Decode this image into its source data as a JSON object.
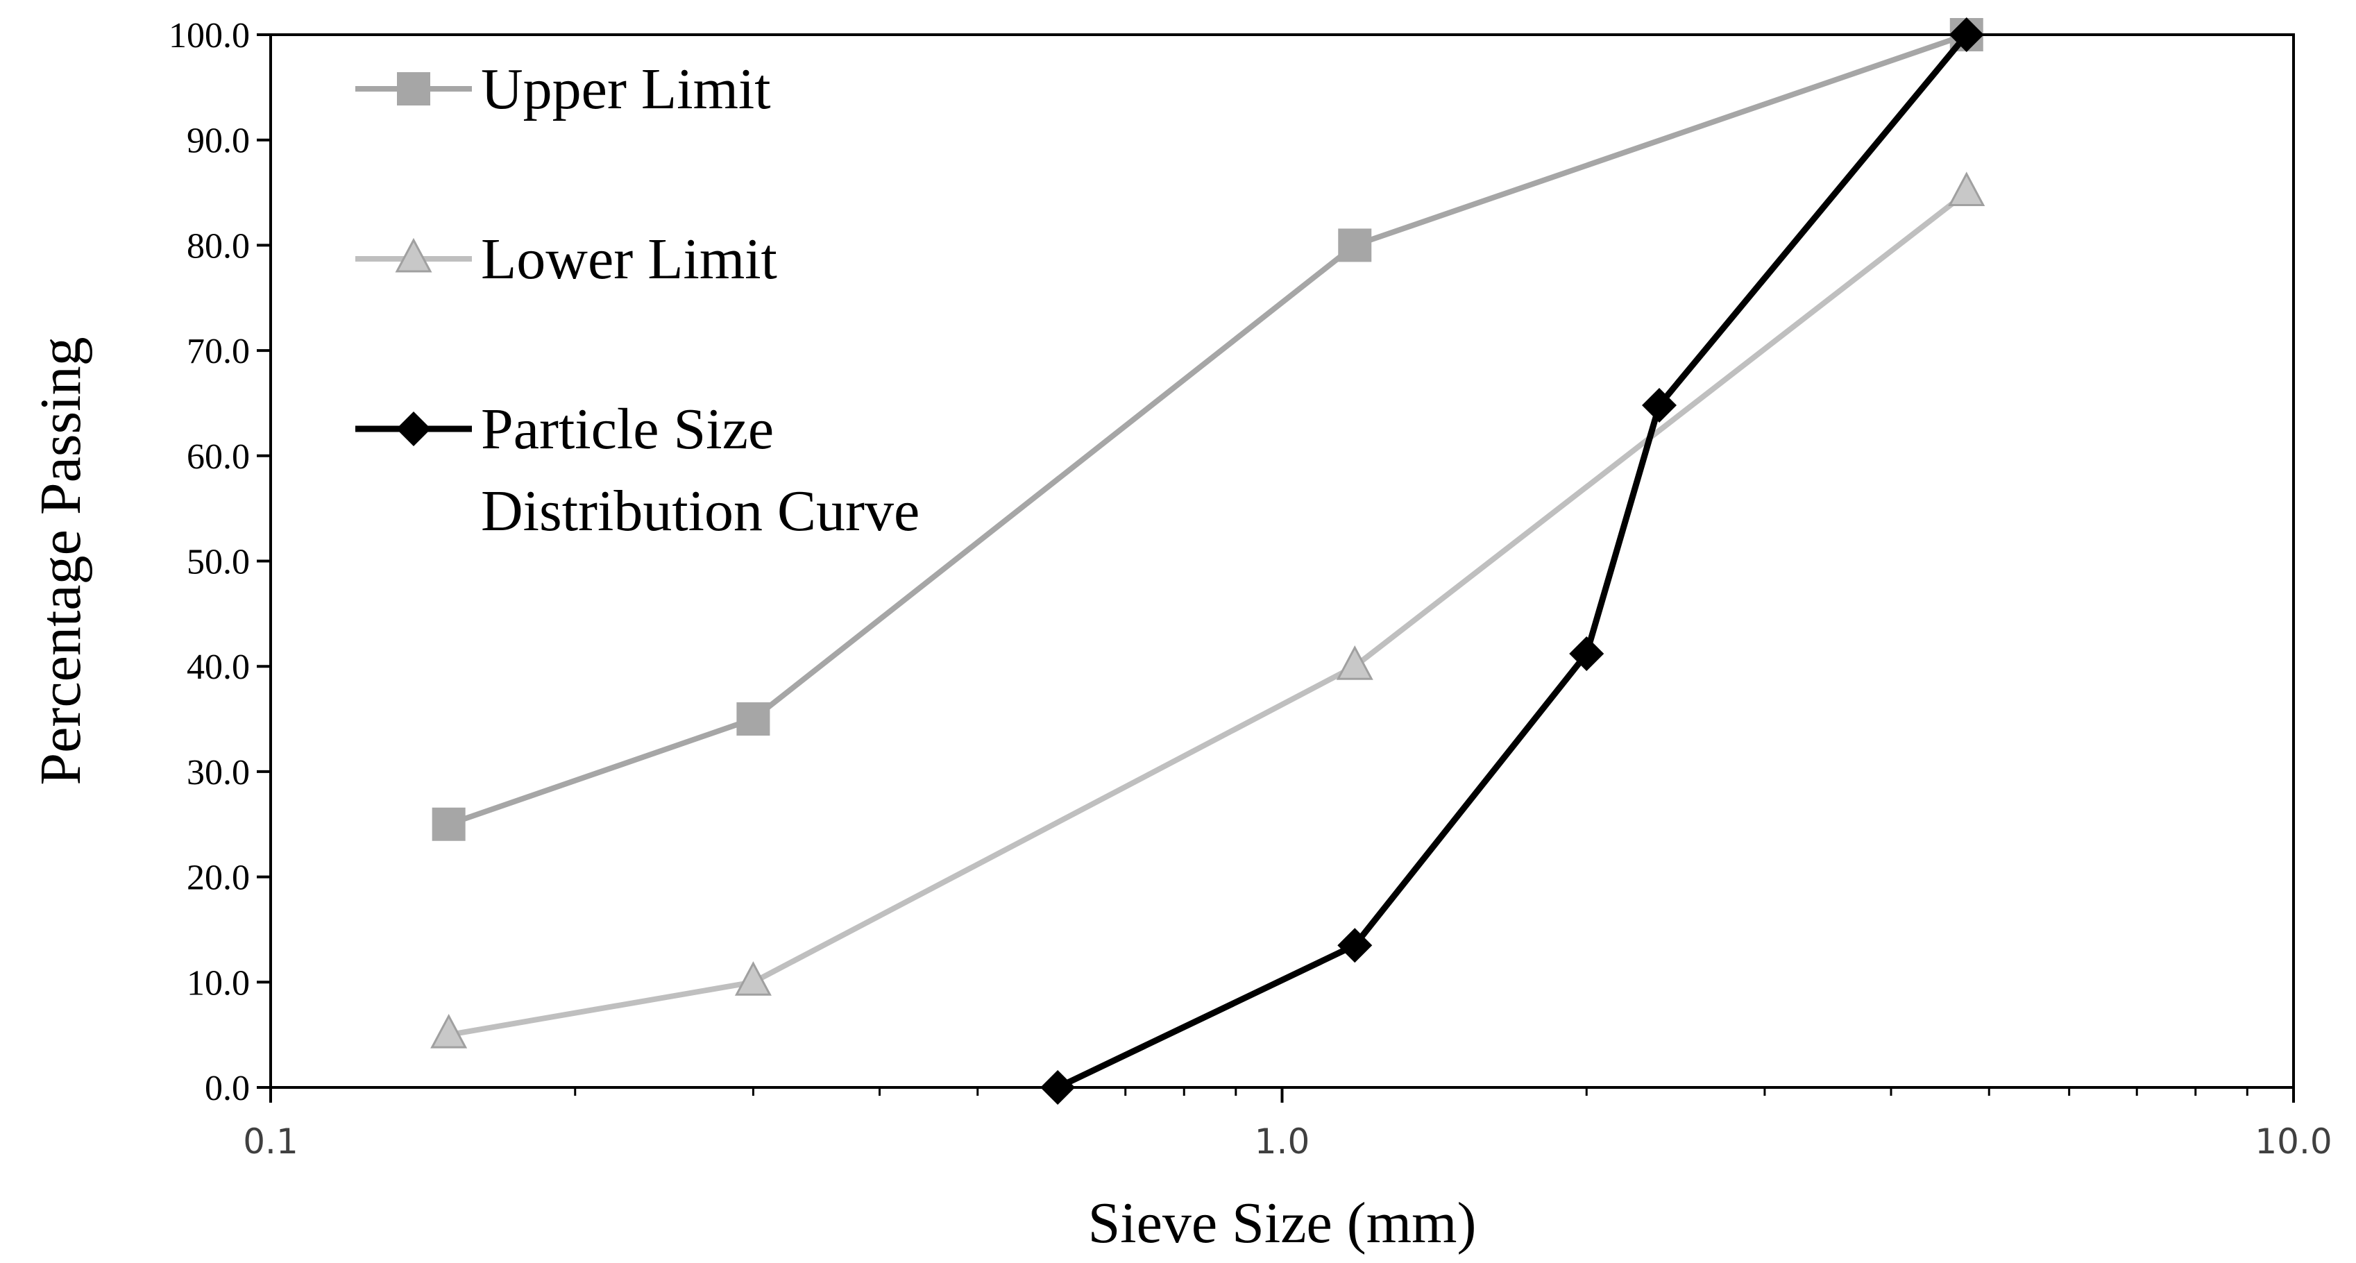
{
  "chart_data": {
    "type": "line",
    "xscale": "log",
    "xlim": [
      0.1,
      10.0
    ],
    "ylim": [
      0.0,
      100.0
    ],
    "xticks": [
      0.1,
      1.0,
      10.0
    ],
    "xtick_labels": [
      "0.1",
      "1.0",
      "10.0"
    ],
    "yticks": [
      0,
      10,
      20,
      30,
      40,
      50,
      60,
      70,
      80,
      90,
      100
    ],
    "ytick_labels": [
      "0.0",
      "10.0",
      "20.0",
      "30.0",
      "40.0",
      "50.0",
      "60.0",
      "70.0",
      "80.0",
      "90.0",
      "100.0"
    ],
    "xlabel": "Sieve Size (mm)",
    "ylabel": "Percentage Passing",
    "grid": false,
    "legend_position": "top-left",
    "series": [
      {
        "name": "Upper Limit",
        "marker": "square",
        "color": "#a6a6a6",
        "x": [
          0.15,
          0.3,
          1.18,
          4.75
        ],
        "y": [
          25.0,
          35.0,
          80.0,
          100.0
        ]
      },
      {
        "name": "Lower Limit",
        "marker": "triangle",
        "color": "#bfbfbf",
        "x": [
          0.15,
          0.3,
          1.18,
          4.75
        ],
        "y": [
          5.0,
          10.0,
          40.0,
          85.0
        ]
      },
      {
        "name": "Particle Size Distribution Curve",
        "name_lines": [
          "Particle Size",
          "Distribution Curve"
        ],
        "marker": "diamond",
        "color": "#000000",
        "x": [
          0.6,
          1.18,
          2.0,
          2.36,
          4.75
        ],
        "y": [
          0.0,
          13.5,
          41.2,
          64.8,
          100.0
        ]
      }
    ]
  }
}
